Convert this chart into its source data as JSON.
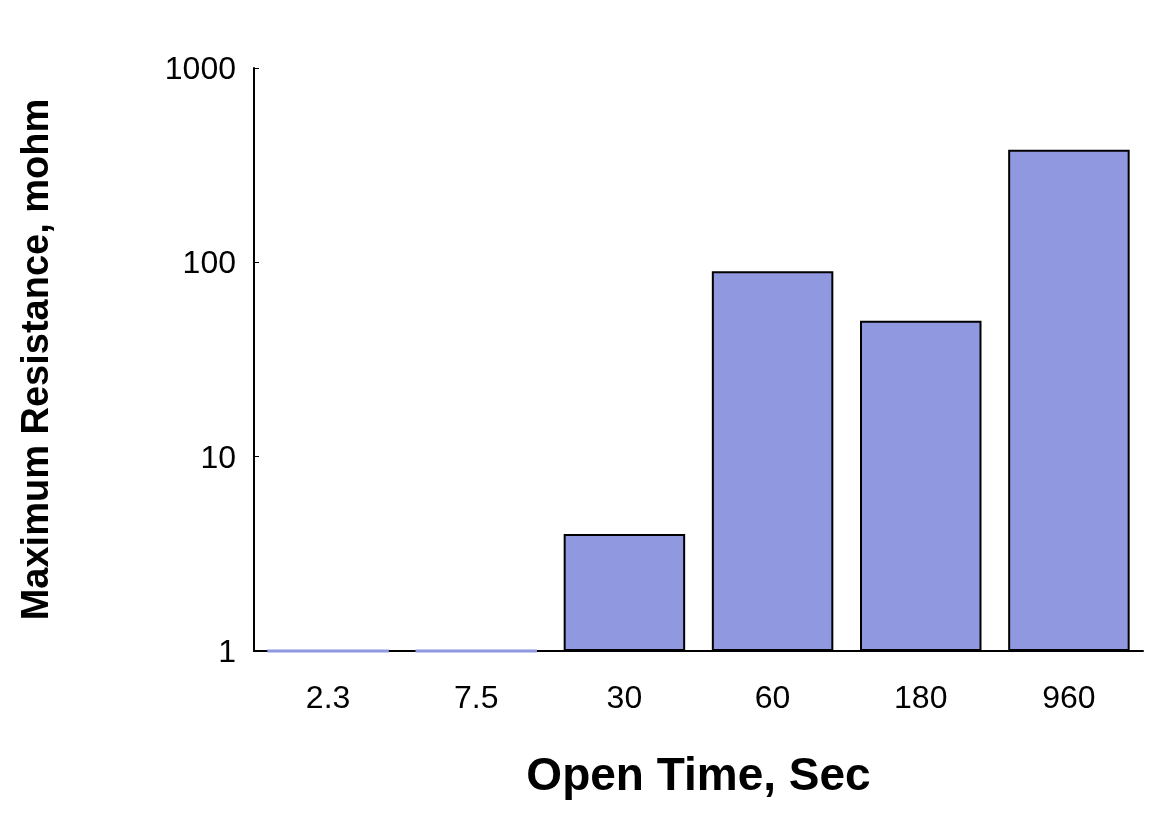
{
  "chart_data": {
    "type": "bar",
    "xlabel": "Open Time, Sec",
    "ylabel": "Maximum Resistance, mohm",
    "categories": [
      "2.3",
      "7.5",
      "30",
      "60",
      "180",
      "960"
    ],
    "values": [
      1,
      1,
      4,
      90,
      50,
      380
    ],
    "color": "#9098e0",
    "log": true,
    "ylim": [
      1,
      1000
    ],
    "yticks": [
      1,
      10,
      100,
      1000
    ],
    "grid": false
  }
}
